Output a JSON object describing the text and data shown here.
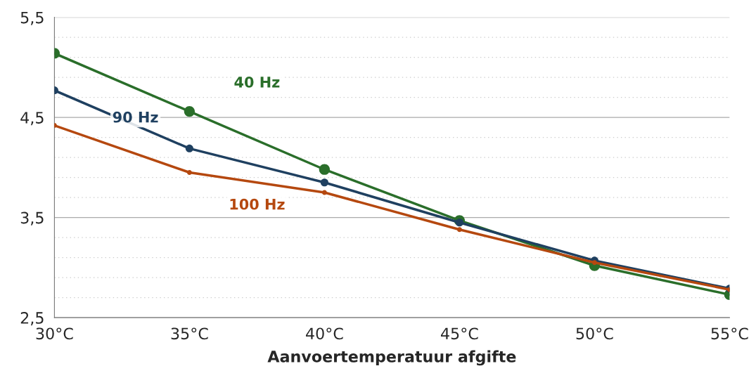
{
  "chart_data": {
    "type": "line",
    "xlabel": "Aanvoertemperatuur afgifte",
    "x": [
      30,
      35,
      40,
      45,
      50,
      55
    ],
    "xlim": [
      30,
      55
    ],
    "xticks": [
      {
        "value": 30,
        "label": "30°C"
      },
      {
        "value": 35,
        "label": "35°C"
      },
      {
        "value": 40,
        "label": "40°C"
      },
      {
        "value": 45,
        "label": "45°C"
      },
      {
        "value": 50,
        "label": "50°C"
      },
      {
        "value": 55,
        "label": "55°C"
      }
    ],
    "ylim": [
      2.5,
      5.5
    ],
    "yticks": [
      {
        "value": 2.5,
        "label": "2,5"
      },
      {
        "value": 3.5,
        "label": "3,5"
      },
      {
        "value": 4.5,
        "label": "4,5"
      },
      {
        "value": 5.5,
        "label": "5,5"
      }
    ],
    "grid": "y",
    "marker": "circle",
    "line_style": "solid",
    "legend": false,
    "series": [
      {
        "name": "40 Hz",
        "color": "#2a6e2a",
        "values": [
          5.14,
          4.56,
          3.98,
          3.47,
          3.02,
          2.73
        ]
      },
      {
        "name": "90 Hz",
        "color": "#1f4060",
        "values": [
          4.77,
          4.19,
          3.85,
          3.45,
          3.07,
          2.79
        ]
      },
      {
        "name": "100 Hz",
        "color": "#b5480f",
        "values": [
          4.42,
          3.95,
          3.75,
          3.38,
          3.05,
          2.78
        ]
      }
    ]
  }
}
